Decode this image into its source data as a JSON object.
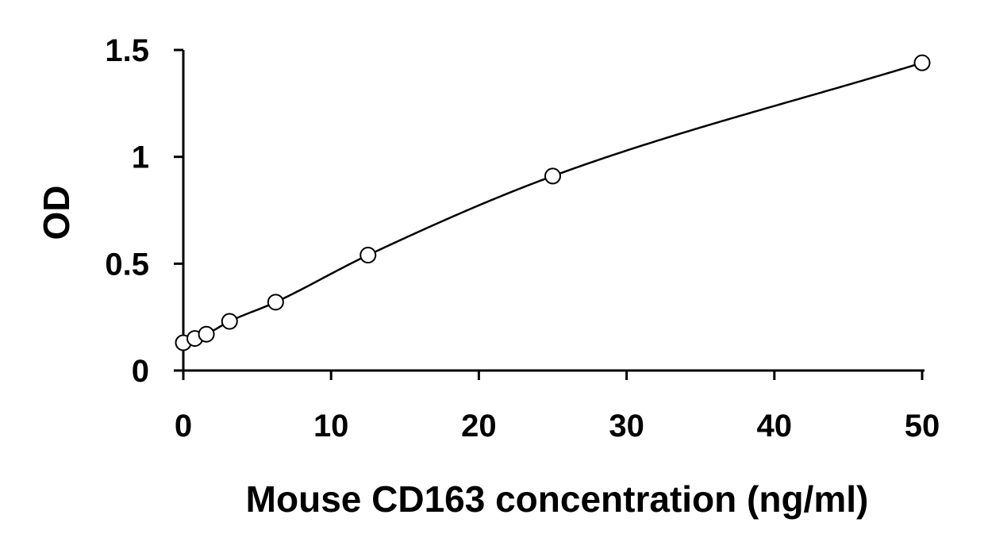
{
  "chart_data": {
    "type": "scatter",
    "title": "",
    "xlabel": "Mouse CD163 concentration (ng/ml)",
    "ylabel": "OD",
    "xlim": [
      0,
      50
    ],
    "ylim": [
      0,
      1.5
    ],
    "xticks": [
      0,
      10,
      20,
      30,
      40,
      50
    ],
    "xtick_labels": [
      "0",
      "10",
      "20",
      "30",
      "40",
      "50"
    ],
    "yticks": [
      0,
      0.5,
      1,
      1.5
    ],
    "ytick_labels": [
      "0",
      "0.5",
      "1",
      "1.5"
    ],
    "grid": false,
    "legend": "none",
    "series": [
      {
        "marker": "open-circle",
        "fit": "smooth-curve",
        "x": [
          0,
          0.78,
          1.56,
          3.13,
          6.25,
          12.5,
          25,
          50
        ],
        "y": [
          0.13,
          0.15,
          0.17,
          0.23,
          0.32,
          0.54,
          0.91,
          1.44
        ]
      }
    ],
    "colors": {
      "line": "#000000",
      "marker_stroke": "#000000",
      "marker_fill": "#ffffff"
    }
  }
}
